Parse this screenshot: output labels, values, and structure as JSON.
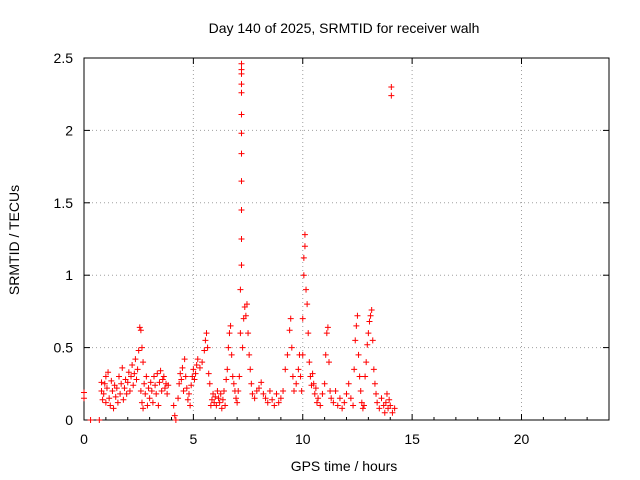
{
  "chart_data": {
    "type": "scatter",
    "title": "Day 140 of 2025, SRMTID for receiver walh",
    "xlabel": "GPS time / hours",
    "ylabel": "SRMTID / TECUs",
    "xlim": [
      0,
      24
    ],
    "ylim": [
      0,
      2.5
    ],
    "xticks": [
      0,
      5,
      10,
      15,
      20
    ],
    "xtick_labels": [
      "0",
      "5",
      "10",
      "15",
      "20"
    ],
    "yticks": [
      0,
      0.5,
      1,
      1.5,
      2,
      2.5
    ],
    "ytick_labels": [
      "0",
      "0.5",
      "1",
      "1.5",
      "2",
      "2.5"
    ],
    "grid": true,
    "marker": "plus",
    "series": [
      {
        "name": "walh",
        "color": "#ff0000",
        "points": [
          [
            0.0,
            0.15
          ],
          [
            0.0,
            0.19
          ],
          [
            0.3,
            0.0
          ],
          [
            0.7,
            0.0
          ],
          [
            0.8,
            0.2
          ],
          [
            0.8,
            0.26
          ],
          [
            0.85,
            0.14
          ],
          [
            0.9,
            0.18
          ],
          [
            0.95,
            0.25
          ],
          [
            1.0,
            0.12
          ],
          [
            1.0,
            0.3
          ],
          [
            1.05,
            0.22
          ],
          [
            1.1,
            0.33
          ],
          [
            1.15,
            0.15
          ],
          [
            1.2,
            0.1
          ],
          [
            1.25,
            0.27
          ],
          [
            1.3,
            0.2
          ],
          [
            1.35,
            0.08
          ],
          [
            1.4,
            0.24
          ],
          [
            1.45,
            0.16
          ],
          [
            1.5,
            0.22
          ],
          [
            1.55,
            0.12
          ],
          [
            1.6,
            0.3
          ],
          [
            1.65,
            0.18
          ],
          [
            1.7,
            0.25
          ],
          [
            1.75,
            0.36
          ],
          [
            1.8,
            0.14
          ],
          [
            1.85,
            0.22
          ],
          [
            1.9,
            0.28
          ],
          [
            1.95,
            0.18
          ],
          [
            2.0,
            0.26
          ],
          [
            2.05,
            0.33
          ],
          [
            2.1,
            0.2
          ],
          [
            2.15,
            0.3
          ],
          [
            2.2,
            0.38
          ],
          [
            2.25,
            0.24
          ],
          [
            2.3,
            0.32
          ],
          [
            2.35,
            0.42
          ],
          [
            2.4,
            0.28
          ],
          [
            2.45,
            0.35
          ],
          [
            2.5,
            0.48
          ],
          [
            2.55,
            0.64
          ],
          [
            2.6,
            0.62
          ],
          [
            2.65,
            0.5
          ],
          [
            2.7,
            0.4
          ],
          [
            2.6,
            0.2
          ],
          [
            2.65,
            0.12
          ],
          [
            2.7,
            0.08
          ],
          [
            2.75,
            0.25
          ],
          [
            2.8,
            0.18
          ],
          [
            2.85,
            0.3
          ],
          [
            2.9,
            0.1
          ],
          [
            2.95,
            0.22
          ],
          [
            3.0,
            0.15
          ],
          [
            3.05,
            0.26
          ],
          [
            3.1,
            0.2
          ],
          [
            3.15,
            0.12
          ],
          [
            3.2,
            0.3
          ],
          [
            3.25,
            0.24
          ],
          [
            3.3,
            0.18
          ],
          [
            3.35,
            0.32
          ],
          [
            3.4,
            0.1
          ],
          [
            3.45,
            0.26
          ],
          [
            3.5,
            0.34
          ],
          [
            3.55,
            0.2
          ],
          [
            3.6,
            0.28
          ],
          [
            3.65,
            0.3
          ],
          [
            3.7,
            0.22
          ],
          [
            3.75,
            0.25
          ],
          [
            3.8,
            0.18
          ],
          [
            3.85,
            0.24
          ],
          [
            4.1,
            0.1
          ],
          [
            4.15,
            0.03
          ],
          [
            4.2,
            0.0
          ],
          [
            4.3,
            0.15
          ],
          [
            4.35,
            0.25
          ],
          [
            4.4,
            0.32
          ],
          [
            4.45,
            0.28
          ],
          [
            4.5,
            0.36
          ],
          [
            4.55,
            0.2
          ],
          [
            4.6,
            0.42
          ],
          [
            4.65,
            0.3
          ],
          [
            4.7,
            0.22
          ],
          [
            4.75,
            0.14
          ],
          [
            4.8,
            0.18
          ],
          [
            4.85,
            0.1
          ],
          [
            4.9,
            0.24
          ],
          [
            4.95,
            0.3
          ],
          [
            5.0,
            0.35
          ],
          [
            5.05,
            0.28
          ],
          [
            5.1,
            0.32
          ],
          [
            5.15,
            0.38
          ],
          [
            5.2,
            0.42
          ],
          [
            5.3,
            0.36
          ],
          [
            5.4,
            0.4
          ],
          [
            5.5,
            0.48
          ],
          [
            5.55,
            0.55
          ],
          [
            5.6,
            0.6
          ],
          [
            5.65,
            0.5
          ],
          [
            5.7,
            0.32
          ],
          [
            5.75,
            0.25
          ],
          [
            5.8,
            0.1
          ],
          [
            5.85,
            0.14
          ],
          [
            5.9,
            0.18
          ],
          [
            5.95,
            0.12
          ],
          [
            6.0,
            0.16
          ],
          [
            6.05,
            0.1
          ],
          [
            6.1,
            0.2
          ],
          [
            6.15,
            0.15
          ],
          [
            6.2,
            0.12
          ],
          [
            6.25,
            0.18
          ],
          [
            6.3,
            0.08
          ],
          [
            6.35,
            0.14
          ],
          [
            6.4,
            0.2
          ],
          [
            6.45,
            0.1
          ],
          [
            6.5,
            0.28
          ],
          [
            6.55,
            0.35
          ],
          [
            6.6,
            0.5
          ],
          [
            6.65,
            0.6
          ],
          [
            6.7,
            0.65
          ],
          [
            6.75,
            0.45
          ],
          [
            6.8,
            0.3
          ],
          [
            6.85,
            0.25
          ],
          [
            6.9,
            0.2
          ],
          [
            6.95,
            0.15
          ],
          [
            7.0,
            0.12
          ],
          [
            7.05,
            0.2
          ],
          [
            7.1,
            0.3
          ],
          [
            7.15,
            0.6
          ],
          [
            7.15,
            0.9
          ],
          [
            7.2,
            1.07
          ],
          [
            7.2,
            1.25
          ],
          [
            7.2,
            1.45
          ],
          [
            7.2,
            1.65
          ],
          [
            7.2,
            1.84
          ],
          [
            7.2,
            1.98
          ],
          [
            7.2,
            2.11
          ],
          [
            7.2,
            2.26
          ],
          [
            7.2,
            2.32
          ],
          [
            7.2,
            2.39
          ],
          [
            7.2,
            2.42
          ],
          [
            7.2,
            2.46
          ],
          [
            7.25,
            0.5
          ],
          [
            7.3,
            0.7
          ],
          [
            7.35,
            0.78
          ],
          [
            7.4,
            0.72
          ],
          [
            7.45,
            0.8
          ],
          [
            7.5,
            0.6
          ],
          [
            7.55,
            0.45
          ],
          [
            7.6,
            0.35
          ],
          [
            7.65,
            0.25
          ],
          [
            7.7,
            0.18
          ],
          [
            7.8,
            0.15
          ],
          [
            7.9,
            0.2
          ],
          [
            8.0,
            0.22
          ],
          [
            8.1,
            0.26
          ],
          [
            8.2,
            0.18
          ],
          [
            8.3,
            0.15
          ],
          [
            8.4,
            0.12
          ],
          [
            8.5,
            0.2
          ],
          [
            8.6,
            0.14
          ],
          [
            8.7,
            0.1
          ],
          [
            8.8,
            0.18
          ],
          [
            8.9,
            0.12
          ],
          [
            9.0,
            0.15
          ],
          [
            9.1,
            0.2
          ],
          [
            9.2,
            0.35
          ],
          [
            9.3,
            0.45
          ],
          [
            9.4,
            0.62
          ],
          [
            9.45,
            0.7
          ],
          [
            9.5,
            0.5
          ],
          [
            9.55,
            0.3
          ],
          [
            9.6,
            0.2
          ],
          [
            9.7,
            0.25
          ],
          [
            9.8,
            0.35
          ],
          [
            9.85,
            0.45
          ],
          [
            9.9,
            0.3
          ],
          [
            9.95,
            0.2
          ],
          [
            10.0,
            0.45
          ],
          [
            10.0,
            0.7
          ],
          [
            10.05,
            1.0
          ],
          [
            10.05,
            1.12
          ],
          [
            10.1,
            1.2
          ],
          [
            10.1,
            1.28
          ],
          [
            10.15,
            0.9
          ],
          [
            10.2,
            0.8
          ],
          [
            10.25,
            0.6
          ],
          [
            10.3,
            0.4
          ],
          [
            10.35,
            0.3
          ],
          [
            10.4,
            0.24
          ],
          [
            10.45,
            0.32
          ],
          [
            10.5,
            0.25
          ],
          [
            10.55,
            0.18
          ],
          [
            10.6,
            0.22
          ],
          [
            10.65,
            0.12
          ],
          [
            10.7,
            0.15
          ],
          [
            10.8,
            0.1
          ],
          [
            10.9,
            0.18
          ],
          [
            11.0,
            0.25
          ],
          [
            11.05,
            0.45
          ],
          [
            11.1,
            0.6
          ],
          [
            11.15,
            0.64
          ],
          [
            11.2,
            0.4
          ],
          [
            11.25,
            0.2
          ],
          [
            11.3,
            0.15
          ],
          [
            11.4,
            0.12
          ],
          [
            11.5,
            0.2
          ],
          [
            11.6,
            0.1
          ],
          [
            11.7,
            0.15
          ],
          [
            11.8,
            0.08
          ],
          [
            11.9,
            0.12
          ],
          [
            12.0,
            0.18
          ],
          [
            12.1,
            0.25
          ],
          [
            12.2,
            0.15
          ],
          [
            12.3,
            0.1
          ],
          [
            12.35,
            0.35
          ],
          [
            12.4,
            0.55
          ],
          [
            12.45,
            0.65
          ],
          [
            12.5,
            0.72
          ],
          [
            12.55,
            0.45
          ],
          [
            12.6,
            0.3
          ],
          [
            12.65,
            0.2
          ],
          [
            12.7,
            0.12
          ],
          [
            12.75,
            0.08
          ],
          [
            12.8,
            0.1
          ],
          [
            12.85,
            0.3
          ],
          [
            12.9,
            0.4
          ],
          [
            12.95,
            0.52
          ],
          [
            13.0,
            0.6
          ],
          [
            13.05,
            0.68
          ],
          [
            13.1,
            0.72
          ],
          [
            13.15,
            0.76
          ],
          [
            13.2,
            0.55
          ],
          [
            13.25,
            0.35
          ],
          [
            13.3,
            0.25
          ],
          [
            13.35,
            0.18
          ],
          [
            13.4,
            0.12
          ],
          [
            13.5,
            0.08
          ],
          [
            13.6,
            0.15
          ],
          [
            13.7,
            0.1
          ],
          [
            13.75,
            0.05
          ],
          [
            13.8,
            0.12
          ],
          [
            13.85,
            0.18
          ],
          [
            13.9,
            0.08
          ],
          [
            13.95,
            0.14
          ],
          [
            14.0,
            0.1
          ],
          [
            14.1,
            0.05
          ],
          [
            14.2,
            0.08
          ],
          [
            14.05,
            2.24
          ],
          [
            14.05,
            2.3
          ]
        ]
      }
    ]
  }
}
